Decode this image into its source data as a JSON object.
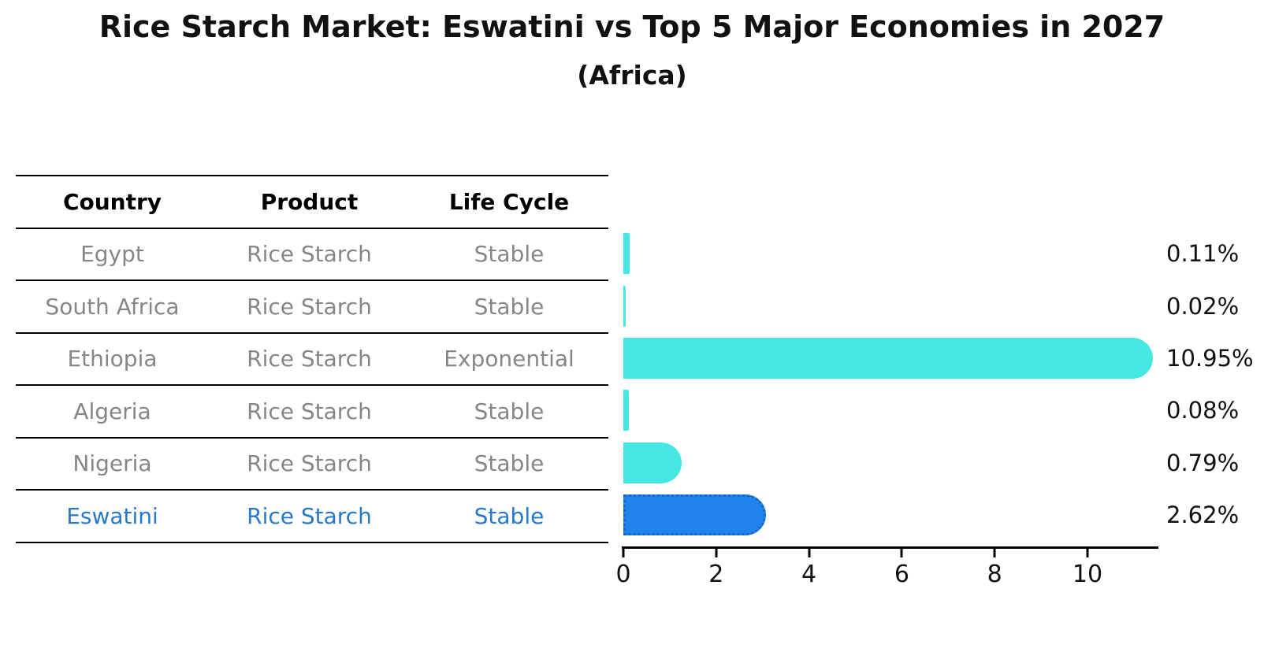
{
  "title": "Rice Starch Market: Eswatini vs Top 5 Major Economies in 2027",
  "subtitle": "(Africa)",
  "table": {
    "headers": [
      "Country",
      "Product",
      "Life Cycle"
    ],
    "rows": [
      {
        "country": "Egypt",
        "product": "Rice Starch",
        "life_cycle": "Stable",
        "highlight": false
      },
      {
        "country": "South Africa",
        "product": "Rice Starch",
        "life_cycle": "Stable",
        "highlight": false
      },
      {
        "country": "Ethiopia",
        "product": "Rice Starch",
        "life_cycle": "Exponential",
        "highlight": false
      },
      {
        "country": "Algeria",
        "product": "Rice Starch",
        "life_cycle": "Stable",
        "highlight": false
      },
      {
        "country": "Nigeria",
        "product": "Rice Starch",
        "life_cycle": "Stable",
        "highlight": false
      },
      {
        "country": "Eswatini",
        "product": "Rice Starch",
        "life_cycle": "Stable",
        "highlight": true
      }
    ]
  },
  "chart_data": {
    "type": "bar",
    "orientation": "horizontal",
    "title": "Rice Starch Market: Eswatini vs Top 5 Major Economies in 2027",
    "subtitle": "(Africa)",
    "categories": [
      "Egypt",
      "South Africa",
      "Ethiopia",
      "Algeria",
      "Nigeria",
      "Eswatini"
    ],
    "values": [
      0.11,
      0.02,
      10.95,
      0.08,
      0.79,
      2.62
    ],
    "value_labels": [
      "0.11%",
      "0.02%",
      "10.95%",
      "0.08%",
      "0.79%",
      "2.62%"
    ],
    "highlight_index": 5,
    "xlim": [
      0,
      11.5
    ],
    "xticks": [
      0,
      2,
      4,
      6,
      8,
      10
    ],
    "grid": false,
    "legend": "none",
    "bar_color": "#46E6E2",
    "highlight_bar_color": "#2082EB",
    "highlight_text_color": "#2878C8",
    "row_text_color": "#868686",
    "axis_color": "#000000"
  }
}
